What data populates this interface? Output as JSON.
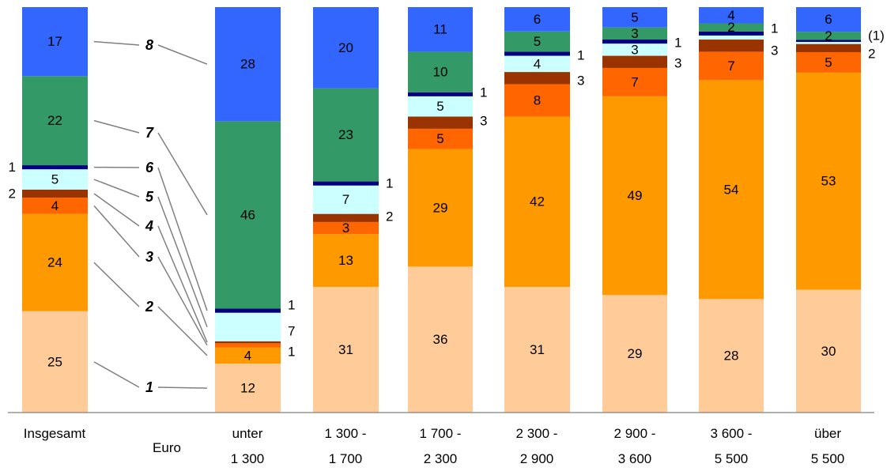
{
  "chart_data": {
    "type": "bar",
    "stacked": true,
    "normalized_to": 100,
    "categories": [
      {
        "key": "insgesamt",
        "lines": [
          "Insgesamt"
        ]
      },
      {
        "key": "unter-1300",
        "lines": [
          "unter",
          "1 300"
        ]
      },
      {
        "key": "1300-1700",
        "lines": [
          "1 300 -",
          "1 700"
        ]
      },
      {
        "key": "1700-2300",
        "lines": [
          "1 700 -",
          "2 300"
        ]
      },
      {
        "key": "2300-2900",
        "lines": [
          "2 300 -",
          "2 900"
        ]
      },
      {
        "key": "2900-3600",
        "lines": [
          "2 900 -",
          "3 600"
        ]
      },
      {
        "key": "3600-5500",
        "lines": [
          "3 600 -",
          "5 500"
        ]
      },
      {
        "key": "ueber-5500",
        "lines": [
          "über",
          "5 500"
        ]
      }
    ],
    "unit_label": "Euro",
    "series": [
      {
        "name": "1",
        "color": "#FFCC99",
        "values": [
          25,
          12,
          31,
          36,
          31,
          29,
          28,
          30
        ],
        "labels": [
          "25",
          "12",
          "31",
          "36",
          "31",
          "29",
          "28",
          "30"
        ]
      },
      {
        "name": "2",
        "color": "#FF9900",
        "values": [
          24,
          4,
          13,
          29,
          42,
          49,
          54,
          53
        ],
        "labels": [
          "24",
          "4",
          "13",
          "29",
          "42",
          "49",
          "54",
          "53"
        ]
      },
      {
        "name": "3",
        "color": "#FF6600",
        "values": [
          4,
          1,
          3,
          5,
          8,
          7,
          7,
          5
        ],
        "labels": [
          "4",
          "1",
          "3",
          "5",
          "8",
          "7",
          "7",
          "5"
        ]
      },
      {
        "name": "4",
        "color": "#993300",
        "values": [
          2,
          0.5,
          2,
          3,
          3,
          3,
          3,
          2
        ],
        "labels": [
          "2",
          "",
          "2",
          "3",
          "3",
          "3",
          "3",
          "2"
        ]
      },
      {
        "name": "5",
        "color": "#CCFFFF",
        "values": [
          5,
          7,
          7,
          5,
          4,
          3,
          1,
          0.5
        ],
        "labels": [
          "5",
          "7",
          "7",
          "5",
          "4",
          "3",
          "",
          ""
        ]
      },
      {
        "name": "6",
        "color": "#000080",
        "values": [
          1,
          1,
          1,
          1,
          1,
          1,
          1,
          0.5
        ],
        "labels": [
          "1",
          "1",
          "1",
          "1",
          "1",
          "1",
          "1",
          "(1)"
        ]
      },
      {
        "name": "7",
        "color": "#339966",
        "values": [
          22,
          46,
          23,
          10,
          5,
          3,
          2,
          2
        ],
        "labels": [
          "22",
          "46",
          "23",
          "10",
          "5",
          "3",
          "2",
          "2"
        ]
      },
      {
        "name": "8",
        "color": "#3366FF",
        "values": [
          17,
          28,
          20,
          11,
          6,
          5,
          4,
          6
        ],
        "labels": [
          "17",
          "28",
          "20",
          "11",
          "6",
          "5",
          "4",
          "6"
        ]
      }
    ],
    "legend": {
      "placement": "left-between-first-and-second-bar",
      "entries": [
        "8",
        "7",
        "6",
        "5",
        "4",
        "3",
        "2",
        "1"
      ]
    },
    "grid": false
  }
}
